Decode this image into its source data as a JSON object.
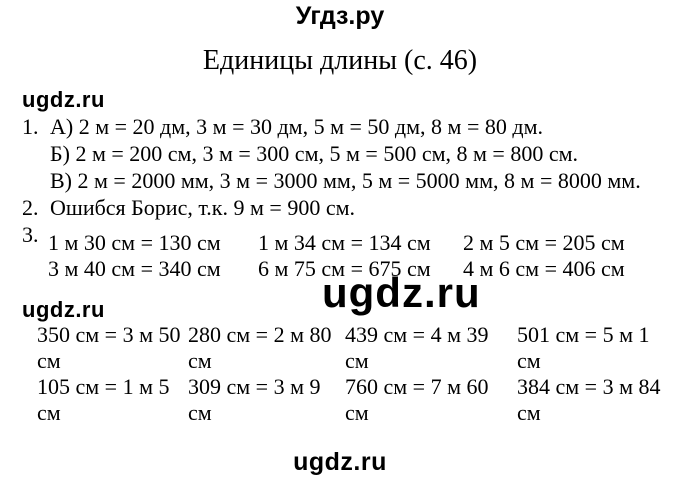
{
  "header": {
    "site_name": "Угдз.ру",
    "title": "Единицы длины (с. 46)"
  },
  "watermarks": {
    "text": "ugdz.ru"
  },
  "colors": {
    "text": "#000000",
    "background": "#ffffff"
  },
  "tasks": {
    "item1": {
      "number": "1.",
      "lines": [
        "А) 2 м = 20 дм, 3 м = 30 дм, 5 м = 50 дм, 8 м = 80 дм.",
        "Б) 2 м = 200 см, 3 м = 300 см, 5 м = 500 см, 8 м = 800 см.",
        "В) 2 м = 2000 мм, 3 м = 3000 мм, 5 м = 5000 мм, 8 м = 8000 мм."
      ]
    },
    "item2": {
      "number": "2.",
      "text": "Ошибся Борис, т.к. 9 м = 900 см."
    },
    "item3": {
      "number": "3.",
      "grid": [
        [
          "1 м 30 см = 130 см",
          "1 м 34 см = 134 см",
          "2 м 5 см = 205 см"
        ],
        [
          "3 м 40 см = 340 см",
          "6 м 75 см = 675 см",
          "4 м 6 см = 406 см"
        ]
      ],
      "table": [
        [
          "350 см = 3 м 50 см",
          "280 см = 2 м 80 см",
          "439 см = 4 м 39 см",
          "501 см = 5 м 1 см"
        ],
        [
          "105 см = 1 м 5 см",
          "309 см = 3 м 9 см",
          "760 см = 7 м 60 см",
          "384 см = 3 м 84 см"
        ]
      ]
    }
  }
}
